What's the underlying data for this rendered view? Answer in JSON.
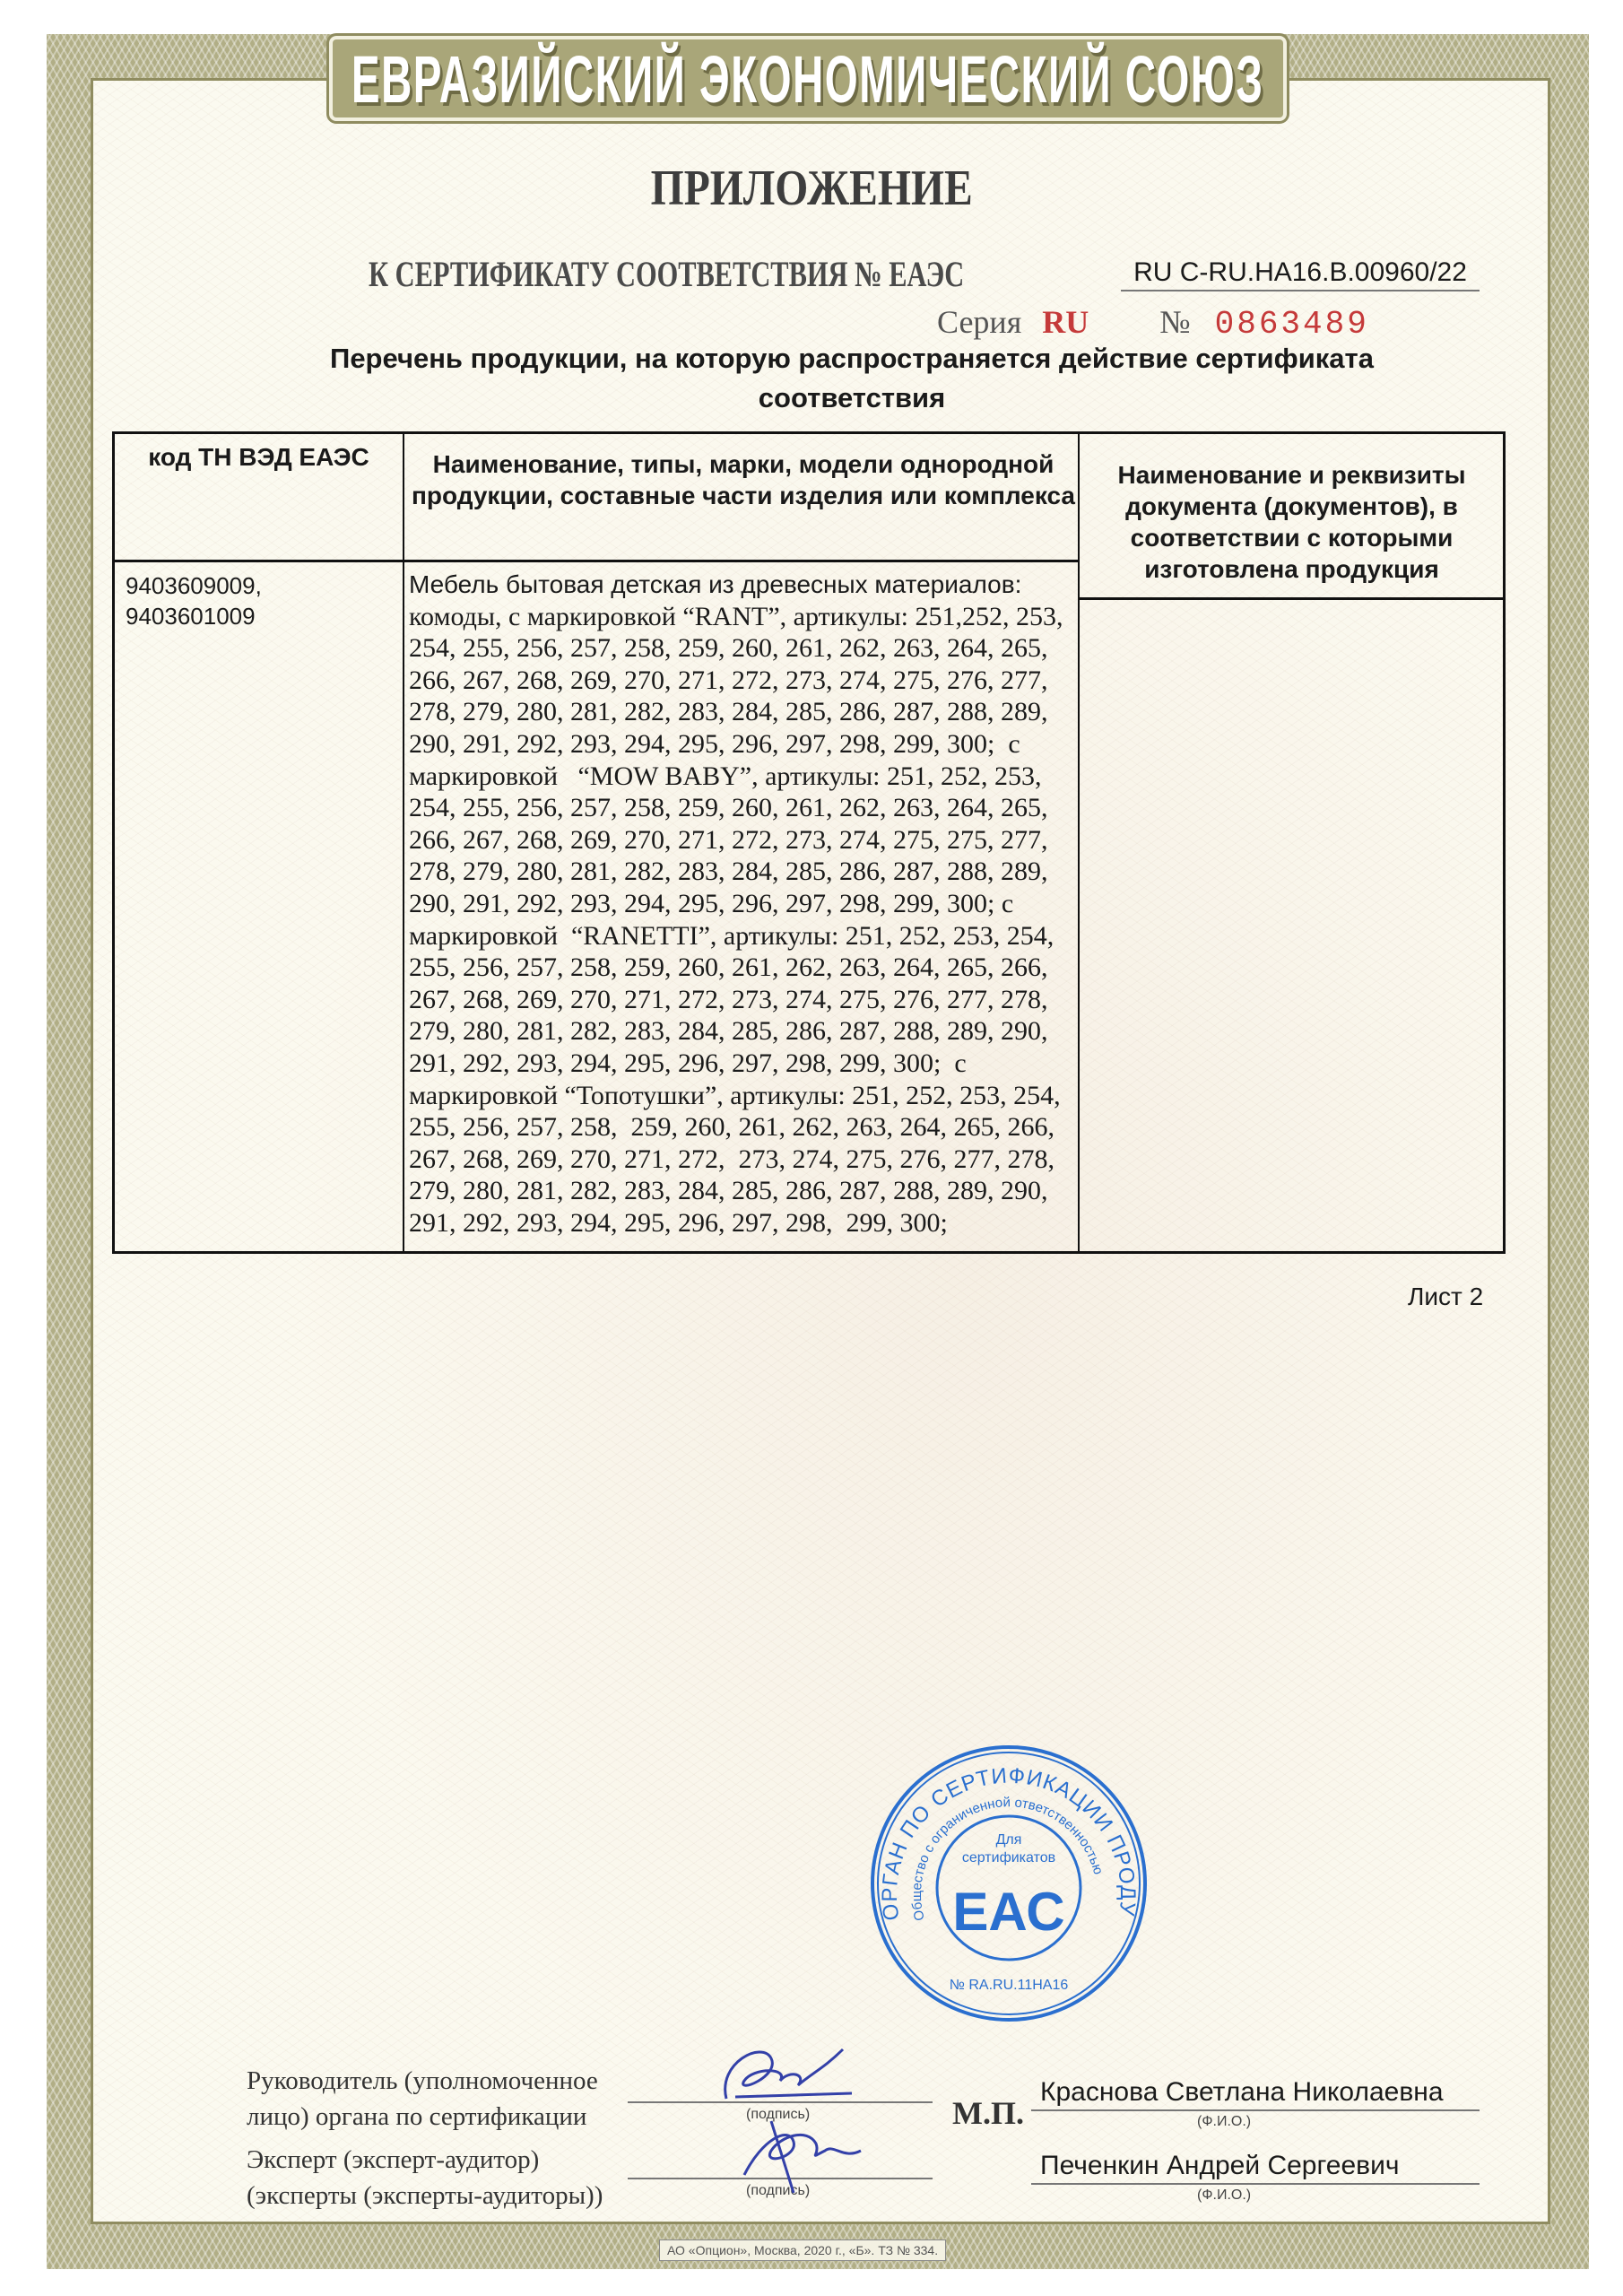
{
  "banner": {
    "text": "ЕВРАЗИЙСКИЙ ЭКОНОМИЧЕСКИЙ СОЮЗ"
  },
  "appendix_title": "ПРИЛОЖЕНИЕ",
  "certificate": {
    "label": "К СЕРТИФИКАТУ СООТВЕТСТВИЯ № ЕАЭС",
    "number": "RU C-RU.HA16.B.00960/22",
    "series_label": "Серия",
    "series_value": "RU",
    "number_sign": "№",
    "blank_number": "0863489"
  },
  "list_title": "Перечень продукции, на которую распространяется действие сертификата соответствия",
  "table": {
    "headers": [
      "код ТН ВЭД ЕАЭС",
      "Наименование, типы, марки, модели однородной продукции, составные части изделия или комплекса",
      "Наименование и реквизиты документа (документов), в соответствии с которыми изготовлена продукция"
    ],
    "codes": [
      "9403609009,",
      "9403601009"
    ],
    "product_lines": [
      "Мебель бытовая детская из древесных материалов:",
      "комоды, с маркировкой “RANT”, артикулы: 251,252, 253,",
      "254, 255, 256, 257, 258, 259, 260, 261, 262, 263, 264, 265,",
      "266, 267, 268, 269, 270, 271, 272, 273, 274, 275, 276, 277,",
      "278, 279, 280, 281, 282, 283, 284, 285, 286, 287, 288, 289,",
      "290, 291, 292, 293, 294, 295, 296, 297, 298, 299, 300;  с",
      "маркировкой   “MOW BABY”, артикулы: 251, 252, 253,",
      "254, 255, 256, 257, 258, 259, 260, 261, 262, 263, 264, 265,",
      "266, 267, 268, 269, 270, 271, 272, 273, 274, 275, 275, 277,",
      "278, 279, 280, 281, 282, 283, 284, 285, 286, 287, 288, 289,",
      "290, 291, 292, 293, 294, 295, 296, 297, 298, 299, 300; с",
      "маркировкой  “RANETTI”, артикулы: 251, 252, 253, 254,",
      "255, 256, 257, 258, 259, 260, 261, 262, 263, 264, 265, 266,",
      "267, 268, 269, 270, 271, 272, 273, 274, 275, 276, 277, 278,",
      "279, 280, 281, 282, 283, 284, 285, 286, 287, 288, 289, 290,",
      "291, 292, 293, 294, 295, 296, 297, 298, 299, 300;  с",
      "маркировкой “Топотушки”, артикулы: 251, 252, 253, 254,",
      "255, 256, 257, 258,  259, 260, 261, 262, 263, 264, 265, 266,",
      "267, 268, 269, 270, 271, 272,  273, 274, 275, 276, 277, 278,",
      "279, 280, 281, 282, 283, 284, 285, 286, 287, 288, 289, 290,",
      "291, 292, 293, 294, 295, 296, 297, 298,  299, 300;"
    ],
    "documents": ""
  },
  "sheet_label": "Лист 2",
  "signatures": {
    "head_label_1": "Руководитель (уполномоченное",
    "head_label_2": "лицо) органа по сертификации",
    "expert_label_1": "Эксперт (эксперт-аудитор)",
    "expert_label_2": "(эксперты (эксперты-аудиторы))",
    "signature_caption": "(подпись)",
    "name_caption": "(Ф.И.О.)",
    "head_name": "Краснова Светлана Николаевна",
    "expert_name": "Печенкин Андрей Сергеевич",
    "seal_place": "М.П."
  },
  "stamp": {
    "outer_text": "ОРГАН ПО СЕРТИФИКАЦИИ ПРОДУКЦИИ",
    "middle_text": "Общество с ограниченной ответственностью",
    "center_text_1": "Для",
    "center_text_2": "сертификатов",
    "logo": "ЕАС",
    "reg_number": "№ RA.RU.11НА16",
    "color": "#2a6fcf"
  },
  "imprint": "АО «Опцион», Москва, 2020 г., «Б».  ТЗ № 334."
}
